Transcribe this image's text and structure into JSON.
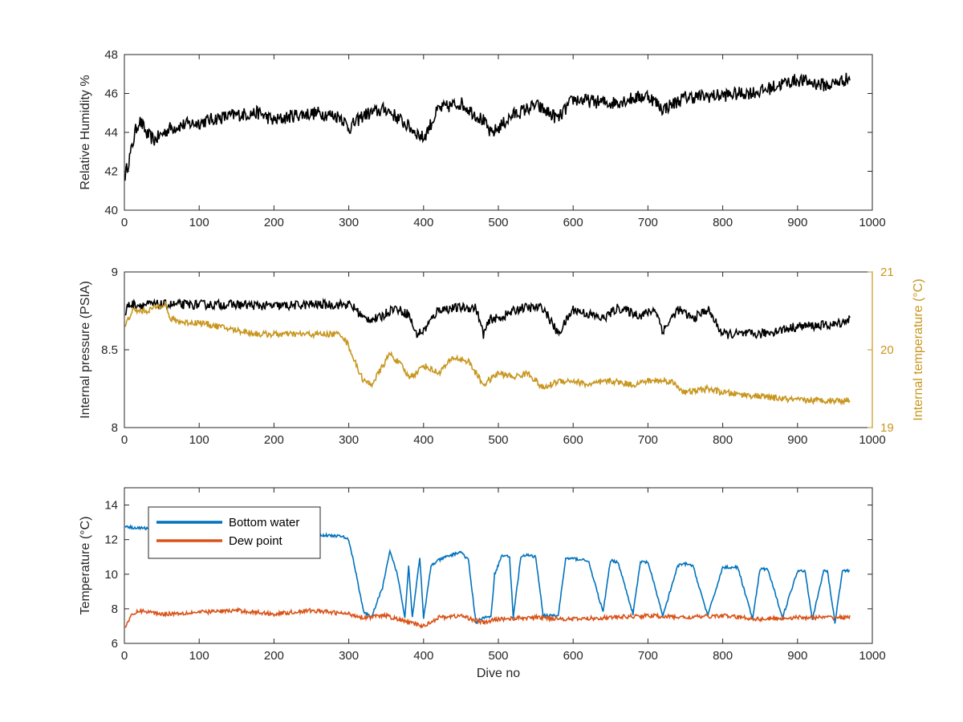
{
  "chart_data": [
    {
      "type": "line",
      "xlabel": "",
      "ylabel": "Relative Humidity %",
      "xlim": [
        0,
        1000
      ],
      "ylim": [
        40,
        48
      ],
      "xticks": [
        0,
        100,
        200,
        300,
        400,
        500,
        600,
        700,
        800,
        900,
        1000
      ],
      "yticks": [
        40,
        42,
        44,
        46,
        48
      ],
      "x_tick_labels": [
        "0",
        "100",
        "200",
        "300",
        "400",
        "500",
        "600",
        "700",
        "800",
        "900",
        "1000"
      ],
      "y_tick_labels": [
        "40",
        "42",
        "44",
        "46",
        "48"
      ],
      "grid": false,
      "series": [
        {
          "color": "#000000",
          "x": [
            1,
            5,
            10,
            15,
            20,
            25,
            30,
            40,
            50,
            60,
            80,
            100,
            120,
            150,
            180,
            200,
            230,
            260,
            290,
            300,
            320,
            350,
            380,
            400,
            420,
            450,
            480,
            490,
            520,
            550,
            580,
            600,
            650,
            700,
            720,
            750,
            800,
            850,
            880,
            900,
            940,
            970
          ],
          "y": [
            41.8,
            42.4,
            43.2,
            44.1,
            44.6,
            44.3,
            43.9,
            43.6,
            43.9,
            44.2,
            44.4,
            44.5,
            44.7,
            44.9,
            45.0,
            44.6,
            44.9,
            45.0,
            44.8,
            44.2,
            44.9,
            45.2,
            44.3,
            43.7,
            45.2,
            45.5,
            44.6,
            43.9,
            44.9,
            45.4,
            44.7,
            45.7,
            45.5,
            45.9,
            45.2,
            45.8,
            45.9,
            46.1,
            46.5,
            46.7,
            46.4,
            46.8
          ]
        }
      ]
    },
    {
      "type": "line",
      "xlabel": "",
      "ylabel": "Internal pressure (PSIA)",
      "y2label": "Internal temperature (°C)",
      "xlim": [
        0,
        1000
      ],
      "ylim": [
        8,
        9
      ],
      "y2lim": [
        19,
        21
      ],
      "xticks": [
        0,
        100,
        200,
        300,
        400,
        500,
        600,
        700,
        800,
        900,
        1000
      ],
      "yticks": [
        8,
        8.5,
        9
      ],
      "y2ticks": [
        19,
        20,
        21
      ],
      "x_tick_labels": [
        "0",
        "100",
        "200",
        "300",
        "400",
        "500",
        "600",
        "700",
        "800",
        "900",
        "1000"
      ],
      "y_tick_labels": [
        "8",
        "8.5",
        "9"
      ],
      "y2_tick_labels": [
        "19",
        "20",
        "21"
      ],
      "y2_color": "#C8961E",
      "grid": false,
      "series": [
        {
          "axis": "left",
          "color": "#000000",
          "x": [
            1,
            5,
            50,
            100,
            150,
            200,
            250,
            300,
            310,
            320,
            340,
            360,
            380,
            390,
            400,
            420,
            450,
            470,
            480,
            490,
            500,
            530,
            560,
            580,
            600,
            640,
            660,
            690,
            710,
            720,
            740,
            760,
            780,
            800,
            850,
            900,
            950,
            970
          ],
          "y": [
            8.72,
            8.79,
            8.79,
            8.79,
            8.79,
            8.78,
            8.79,
            8.79,
            8.76,
            8.7,
            8.7,
            8.77,
            8.73,
            8.6,
            8.62,
            8.76,
            8.77,
            8.77,
            8.6,
            8.7,
            8.7,
            8.77,
            8.77,
            8.6,
            8.76,
            8.7,
            8.77,
            8.72,
            8.76,
            8.62,
            8.76,
            8.7,
            8.76,
            8.6,
            8.6,
            8.65,
            8.66,
            8.7
          ]
        },
        {
          "axis": "right",
          "color": "#C8961E",
          "x": [
            1,
            10,
            30,
            55,
            60,
            80,
            100,
            150,
            180,
            200,
            250,
            290,
            300,
            310,
            320,
            330,
            340,
            355,
            370,
            380,
            390,
            400,
            420,
            440,
            460,
            480,
            500,
            520,
            540,
            560,
            580,
            600,
            620,
            650,
            680,
            700,
            730,
            750,
            780,
            800,
            850,
            900,
            950,
            970
          ],
          "y": [
            20.3,
            20.5,
            20.5,
            20.6,
            20.4,
            20.35,
            20.35,
            20.25,
            20.2,
            20.2,
            20.2,
            20.2,
            20.05,
            19.8,
            19.6,
            19.55,
            19.7,
            19.95,
            19.8,
            19.65,
            19.7,
            19.8,
            19.7,
            19.9,
            19.85,
            19.55,
            19.7,
            19.65,
            19.7,
            19.5,
            19.6,
            19.6,
            19.55,
            19.6,
            19.55,
            19.6,
            19.6,
            19.45,
            19.5,
            19.45,
            19.4,
            19.35,
            19.35,
            19.35
          ]
        }
      ]
    },
    {
      "type": "line",
      "xlabel": "Dive no",
      "ylabel": "Temperature (°C)",
      "xlim": [
        0,
        1000
      ],
      "ylim": [
        6,
        15
      ],
      "xticks": [
        0,
        100,
        200,
        300,
        400,
        500,
        600,
        700,
        800,
        900,
        1000
      ],
      "yticks": [
        6,
        8,
        10,
        12,
        14
      ],
      "x_tick_labels": [
        "0",
        "100",
        "200",
        "300",
        "400",
        "500",
        "600",
        "700",
        "800",
        "900",
        "1000"
      ],
      "y_tick_labels": [
        "6",
        "8",
        "10",
        "12",
        "14"
      ],
      "grid": false,
      "legend_position": "top-left",
      "series": [
        {
          "name": "Bottom water",
          "color": "#0072BD",
          "x": [
            1,
            10,
            50,
            100,
            150,
            200,
            250,
            290,
            300,
            310,
            320,
            330,
            345,
            355,
            365,
            375,
            380,
            385,
            395,
            400,
            410,
            420,
            430,
            450,
            460,
            470,
            480,
            490,
            495,
            505,
            515,
            520,
            530,
            540,
            550,
            560,
            580,
            590,
            600,
            620,
            640,
            650,
            660,
            680,
            690,
            700,
            720,
            740,
            750,
            760,
            780,
            800,
            820,
            840,
            850,
            860,
            880,
            900,
            910,
            920,
            935,
            940,
            950,
            960,
            970
          ],
          "y": [
            12.8,
            12.7,
            12.6,
            12.5,
            12.4,
            12.4,
            12.3,
            12.2,
            12.0,
            10.0,
            7.8,
            7.5,
            9.2,
            11.3,
            10.0,
            7.5,
            10.5,
            7.5,
            11.0,
            7.4,
            10.5,
            10.8,
            11.0,
            11.3,
            10.8,
            7.2,
            7.5,
            7.5,
            10.0,
            11.1,
            11.0,
            7.5,
            11.0,
            11.1,
            11.0,
            7.6,
            7.6,
            10.9,
            10.9,
            10.8,
            7.8,
            10.8,
            10.7,
            7.7,
            10.7,
            10.7,
            7.6,
            10.5,
            10.6,
            10.5,
            7.6,
            10.4,
            10.4,
            7.4,
            10.3,
            10.3,
            7.5,
            10.2,
            10.2,
            7.4,
            10.2,
            10.2,
            7.2,
            10.2,
            10.2
          ]
        },
        {
          "name": "Dew point",
          "color": "#D95319",
          "x": [
            1,
            10,
            20,
            50,
            100,
            150,
            200,
            250,
            300,
            320,
            350,
            380,
            400,
            420,
            450,
            480,
            500,
            550,
            600,
            650,
            700,
            750,
            800,
            850,
            900,
            950,
            970
          ],
          "y": [
            7.0,
            7.6,
            7.9,
            7.7,
            7.8,
            7.9,
            7.7,
            7.9,
            7.7,
            7.5,
            7.6,
            7.2,
            7.0,
            7.5,
            7.6,
            7.2,
            7.4,
            7.5,
            7.4,
            7.5,
            7.6,
            7.5,
            7.6,
            7.4,
            7.5,
            7.5,
            7.5
          ]
        }
      ]
    }
  ]
}
